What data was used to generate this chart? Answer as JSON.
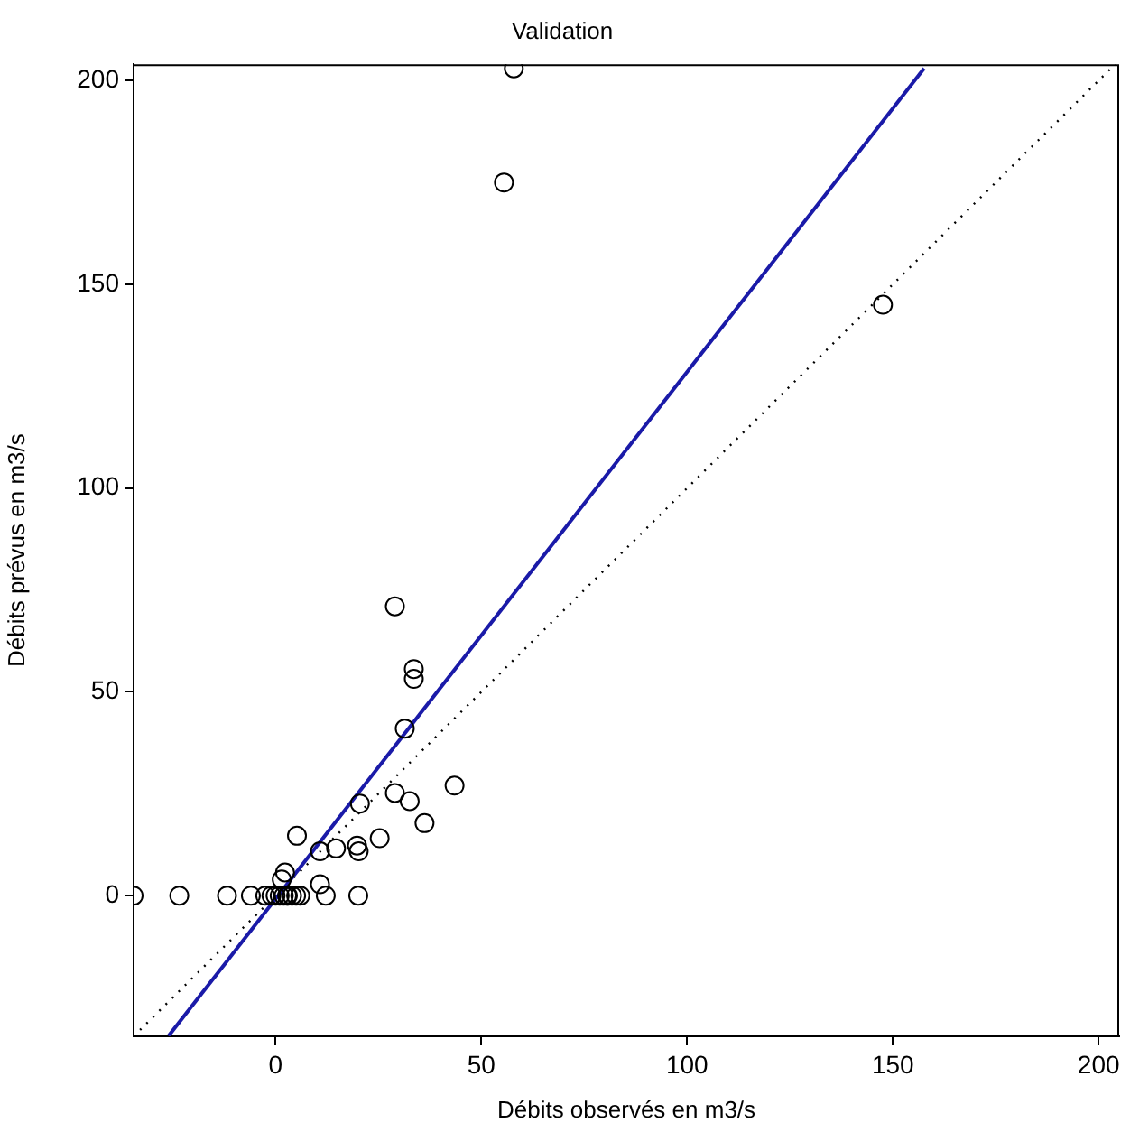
{
  "chart_data": {
    "type": "scatter",
    "title": "Validation",
    "xlabel": "Débits observés en m3/s",
    "ylabel": "Débits prévus en m3/s",
    "xlim": [
      -34.5,
      205
    ],
    "ylim": [
      -34.5,
      204
    ],
    "xticks": [
      0,
      50,
      100,
      150,
      200
    ],
    "yticks": [
      0,
      50,
      100,
      150,
      200
    ],
    "grid": false,
    "legend": false,
    "series": [
      {
        "marker": "circle",
        "color": "#000000",
        "x": [
          57.9,
          55.5,
          147.6,
          29,
          33.6,
          33.6,
          31.4,
          43.5,
          20.5,
          29,
          32.6,
          36.2,
          25.3,
          5.2,
          19.8,
          20.2,
          14.7,
          10.8,
          10.8,
          2.3,
          -34.5,
          -23.4,
          -11.8,
          -6,
          -2.5,
          -1,
          0,
          1,
          2,
          2.8,
          3,
          4,
          5,
          6,
          12.2,
          20.1,
          1.5
        ],
        "values": [
          203,
          175,
          145,
          71,
          55.6,
          53.2,
          41,
          27,
          22.6,
          25.2,
          23.2,
          17.8,
          14.1,
          14.7,
          12.3,
          10.9,
          11.6,
          10.9,
          2.8,
          5.7,
          0,
          0,
          0,
          0,
          0,
          0,
          0,
          0,
          0,
          0,
          0,
          0,
          0,
          0,
          0,
          0,
          4
        ]
      },
      {
        "type": "line",
        "marker": "none",
        "line_style": "solid",
        "color": "#1a1aa8",
        "x": [
          -26,
          157.6
        ],
        "values": [
          -34.4,
          203
        ]
      },
      {
        "type": "line",
        "marker": "none",
        "line_style": "dotted",
        "color": "#000000",
        "x": [
          -34.5,
          204
        ],
        "values": [
          -34.5,
          204
        ]
      }
    ]
  }
}
